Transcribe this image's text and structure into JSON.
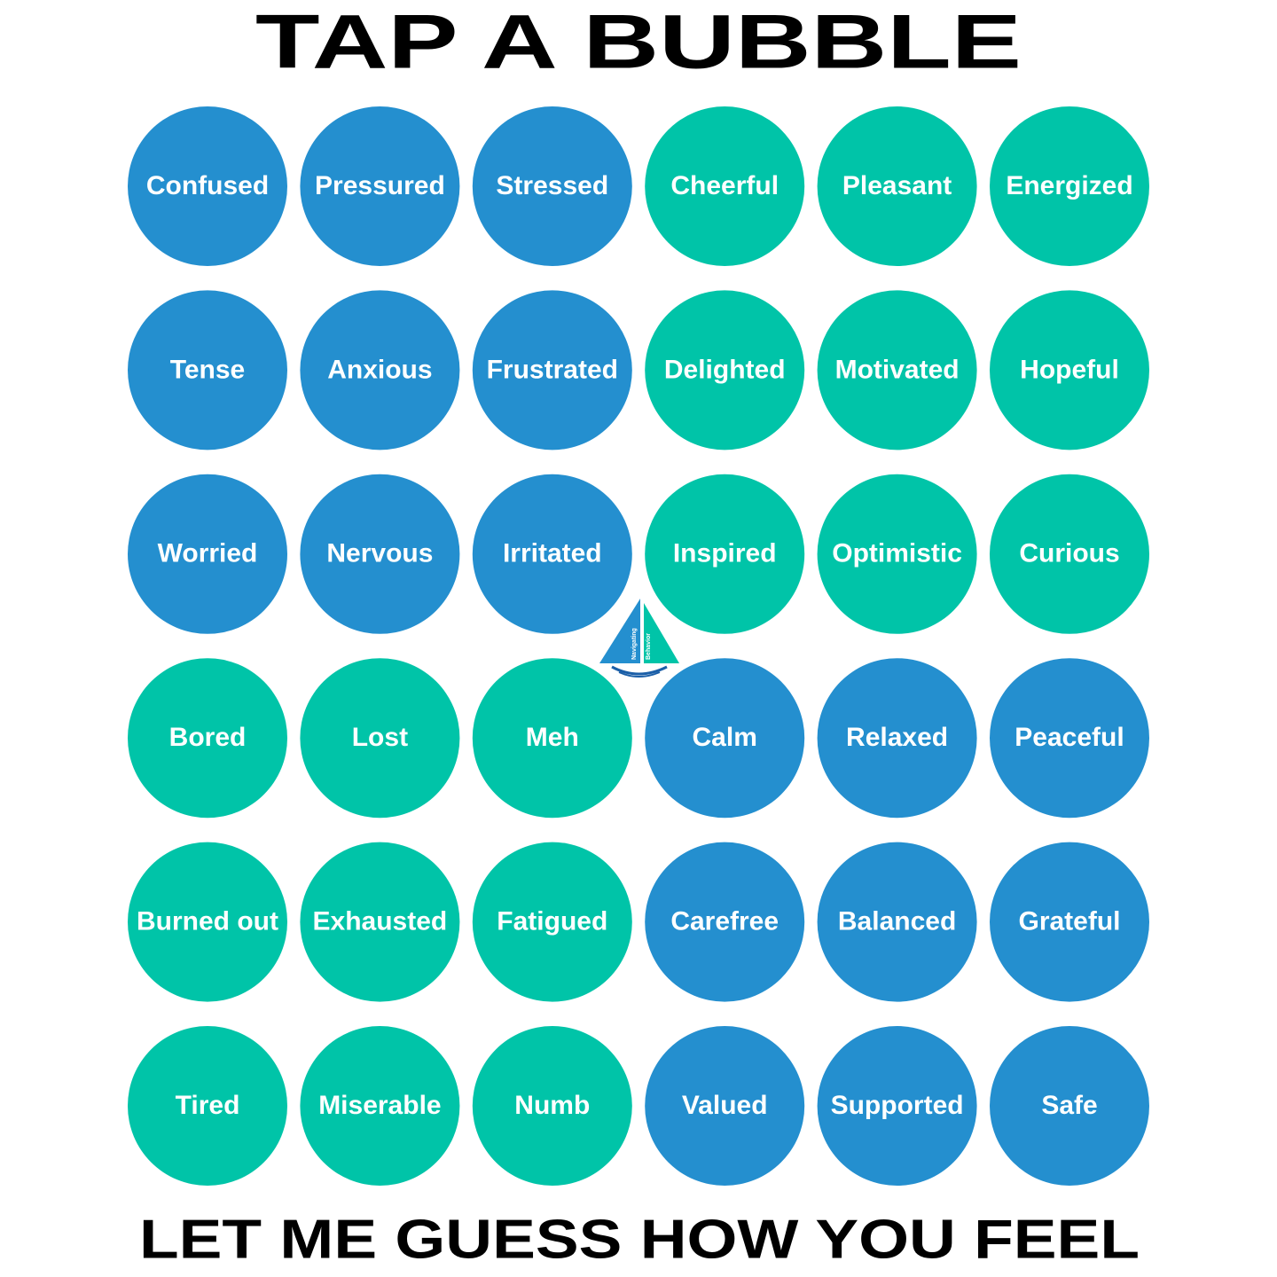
{
  "header": {
    "title": "TAP A BUBBLE"
  },
  "bubbles": {
    "rows": [
      [
        {
          "label": "Confused",
          "color": "#248fcf"
        },
        {
          "label": "Pressured",
          "color": "#248fcf"
        },
        {
          "label": "Stressed",
          "color": "#248fcf"
        },
        {
          "label": "Cheerful",
          "color": "#00c4a8"
        },
        {
          "label": "Pleasant",
          "color": "#00c4a8"
        },
        {
          "label": "Energized",
          "color": "#00c4a8"
        }
      ],
      [
        {
          "label": "Tense",
          "color": "#248fcf"
        },
        {
          "label": "Anxious",
          "color": "#248fcf"
        },
        {
          "label": "Frustrated",
          "color": "#248fcf"
        },
        {
          "label": "Delighted",
          "color": "#00c4a8"
        },
        {
          "label": "Motivated",
          "color": "#00c4a8"
        },
        {
          "label": "Hopeful",
          "color": "#00c4a8"
        }
      ],
      [
        {
          "label": "Worried",
          "color": "#248fcf"
        },
        {
          "label": "Nervous",
          "color": "#248fcf"
        },
        {
          "label": "Irritated",
          "color": "#248fcf"
        },
        {
          "label": "Inspired",
          "color": "#00c4a8"
        },
        {
          "label": "Optimistic",
          "color": "#00c4a8"
        },
        {
          "label": "Curious",
          "color": "#00c4a8"
        }
      ],
      [
        {
          "label": "Bored",
          "color": "#00c4a8"
        },
        {
          "label": "Lost",
          "color": "#00c4a8"
        },
        {
          "label": "Meh",
          "color": "#00c4a8"
        },
        {
          "label": "Calm",
          "color": "#248fcf"
        },
        {
          "label": "Relaxed",
          "color": "#248fcf"
        },
        {
          "label": "Peaceful",
          "color": "#248fcf"
        }
      ],
      [
        {
          "label": "Burned out",
          "color": "#00c4a8"
        },
        {
          "label": "Exhausted",
          "color": "#00c4a8"
        },
        {
          "label": "Fatigued",
          "color": "#00c4a8"
        },
        {
          "label": "Carefree",
          "color": "#248fcf"
        },
        {
          "label": "Balanced",
          "color": "#248fcf"
        },
        {
          "label": "Grateful",
          "color": "#248fcf"
        }
      ],
      [
        {
          "label": "Tired",
          "color": "#00c4a8"
        },
        {
          "label": "Miserable",
          "color": "#00c4a8"
        },
        {
          "label": "Numb",
          "color": "#00c4a8"
        },
        {
          "label": "Valued",
          "color": "#248fcf"
        },
        {
          "label": "Supported",
          "color": "#248fcf"
        },
        {
          "label": "Safe",
          "color": "#248fcf"
        }
      ]
    ]
  },
  "logo": {
    "lines": [
      "Navigating",
      "Behavior"
    ]
  },
  "footer": {
    "text": "LET ME GUESS HOW YOU FEEL"
  }
}
